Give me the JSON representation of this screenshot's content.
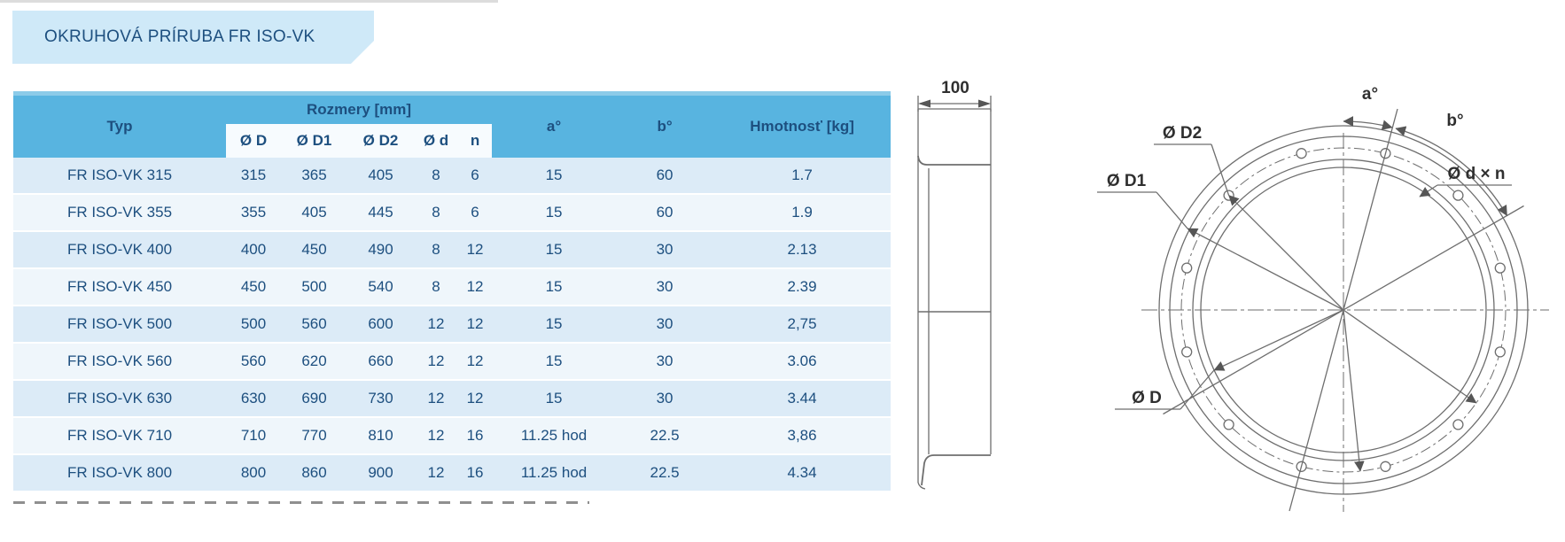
{
  "title": "OKRUHOVÁ PRÍRUBA FR ISO-VK",
  "colors": {
    "header_blue": "#58b4e0",
    "header_top": "#8ccbe9",
    "text_blue": "#1d4f7f",
    "row_odd": "#dcebf7",
    "row_even": "#eff6fb",
    "subheader_bg": "#f7fbfe",
    "banner_bg": "#cfe9f8",
    "drawing_line": "#6e6e6e",
    "drawing_text": "#2f2f2f"
  },
  "table": {
    "header": {
      "typ": "Typ",
      "rozmery": "Rozmery [mm]",
      "dims": [
        "Ø D",
        "Ø D1",
        "Ø D2",
        "Ø d",
        "n"
      ],
      "a": "a°",
      "b": "b°",
      "hmotnost": "Hmotnosť [kg]"
    },
    "rows": [
      [
        "FR ISO-VK 315",
        "315",
        "365",
        "405",
        "8",
        "6",
        "15",
        "60",
        "1.7"
      ],
      [
        "FR ISO-VK 355",
        "355",
        "405",
        "445",
        "8",
        "6",
        "15",
        "60",
        "1.9"
      ],
      [
        "FR ISO-VK 400",
        "400",
        "450",
        "490",
        "8",
        "12",
        "15",
        "30",
        "2.13"
      ],
      [
        "FR ISO-VK 450",
        "450",
        "500",
        "540",
        "8",
        "12",
        "15",
        "30",
        "2.39"
      ],
      [
        "FR ISO-VK 500",
        "500",
        "560",
        "600",
        "12",
        "12",
        "15",
        "30",
        "2,75"
      ],
      [
        "FR ISO-VK 560",
        "560",
        "620",
        "660",
        "12",
        "12",
        "15",
        "30",
        "3.06"
      ],
      [
        "FR ISO-VK 630",
        "630",
        "690",
        "730",
        "12",
        "12",
        "15",
        "30",
        "3.44"
      ],
      [
        "FR ISO-VK 710",
        "710",
        "770",
        "810",
        "12",
        "16",
        "11.25 hod",
        "22.5",
        "3,86"
      ],
      [
        "FR ISO-VK 800",
        "800",
        "860",
        "900",
        "12",
        "16",
        "11.25 hod",
        "22.5",
        "4.34"
      ]
    ]
  },
  "drawing": {
    "side_width_label": "100",
    "labels": {
      "a": "a°",
      "b": "b°",
      "d2": "Ø D2",
      "d1": "Ø D1",
      "d": "Ø D",
      "dxn": "Ø d × n"
    }
  }
}
